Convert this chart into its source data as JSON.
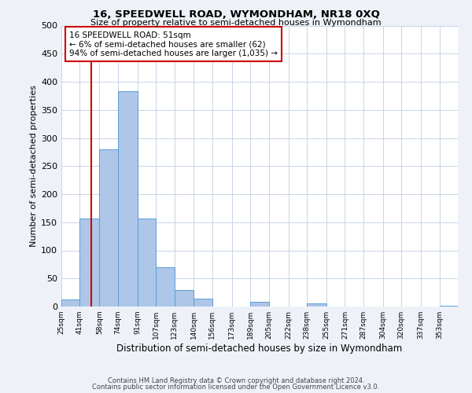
{
  "title": "16, SPEEDWELL ROAD, WYMONDHAM, NR18 0XQ",
  "subtitle": "Size of property relative to semi-detached houses in Wymondham",
  "xlabel": "Distribution of semi-detached houses by size in Wymondham",
  "ylabel": "Number of semi-detached properties",
  "bin_labels": [
    "25sqm",
    "41sqm",
    "58sqm",
    "74sqm",
    "91sqm",
    "107sqm",
    "123sqm",
    "140sqm",
    "156sqm",
    "173sqm",
    "189sqm",
    "205sqm",
    "222sqm",
    "238sqm",
    "255sqm",
    "271sqm",
    "287sqm",
    "304sqm",
    "320sqm",
    "337sqm",
    "353sqm"
  ],
  "bin_edges": [
    25,
    41,
    58,
    74,
    91,
    107,
    123,
    140,
    156,
    173,
    189,
    205,
    222,
    238,
    255,
    271,
    287,
    304,
    320,
    337,
    353,
    369
  ],
  "bar_values": [
    12,
    157,
    280,
    383,
    157,
    70,
    30,
    14,
    0,
    0,
    8,
    0,
    0,
    6,
    0,
    0,
    0,
    0,
    0,
    0,
    2
  ],
  "bar_color": "#aec6e8",
  "bar_edge_color": "#5a9fd4",
  "ylim": [
    0,
    500
  ],
  "yticks": [
    0,
    50,
    100,
    150,
    200,
    250,
    300,
    350,
    400,
    450,
    500
  ],
  "property_size": 51,
  "vline_color": "#cc0000",
  "annotation_title": "16 SPEEDWELL ROAD: 51sqm",
  "annotation_line1": "← 6% of semi-detached houses are smaller (62)",
  "annotation_line2": "94% of semi-detached houses are larger (1,035) →",
  "annotation_box_color": "#cc0000",
  "footer_line1": "Contains HM Land Registry data © Crown copyright and database right 2024.",
  "footer_line2": "Contains public sector information licensed under the Open Government Licence v3.0.",
  "bg_color": "#eef2f8",
  "plot_bg_color": "#ffffff",
  "grid_color": "#c8d4e8"
}
